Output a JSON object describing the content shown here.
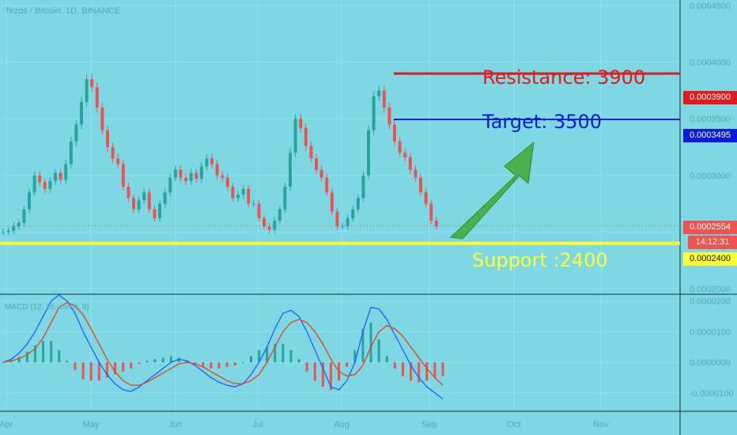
{
  "header": {
    "title": "Tezos / Bitcoin, 1D, BINANCE",
    "macd_label": "MACD (12, 26, close, 9)"
  },
  "annotations": {
    "resistance": "Resistance: 3900",
    "target": "Target: 3500",
    "support": "Support :2400"
  },
  "price_badges": {
    "resistance": "0.0003900",
    "target": "0.0003495",
    "last": "0.0002554",
    "countdown": "14:12:31",
    "support": "0.0002400"
  },
  "colors": {
    "background": "#7dd8e4",
    "up_candle": "#26a69a",
    "down_candle": "#ef5350",
    "resistance": "#e31a1c",
    "target": "#0a1ad6",
    "support": "#ffff33",
    "arrow": "#4cae4c",
    "macd_line": "#2962ff",
    "signal_line": "#e64a19"
  },
  "chart_data": {
    "type": "candlestick",
    "main": {
      "y_ticks": [
        "0.0004500",
        "0.0004000",
        "0.0003500",
        "0.0003000",
        "0.0002500",
        "0.0002000"
      ],
      "ylim": [
        0.000195,
        0.000455
      ],
      "x_ticks": [
        "Apr",
        "May",
        "Jun",
        "Jul",
        "Aug",
        "Sep",
        "Oct",
        "Nov"
      ],
      "horizontal_levels": [
        {
          "name": "Resistance",
          "value": 0.00039
        },
        {
          "name": "Target",
          "value": 0.0003495
        },
        {
          "name": "Support",
          "value": 0.00024
        }
      ],
      "last_price": 0.0002554,
      "series": [
        {
          "name": "Close",
          "values": [
            0.00025,
            0.000251,
            0.000255,
            0.000258,
            0.00027,
            0.000285,
            0.0003,
            0.000294,
            0.000288,
            0.000295,
            0.000302,
            0.000296,
            0.00031,
            0.00033,
            0.000345,
            0.000365,
            0.000385,
            0.000378,
            0.00036,
            0.00034,
            0.000325,
            0.000315,
            0.00031,
            0.00029,
            0.00028,
            0.00027,
            0.000278,
            0.000285,
            0.00027,
            0.000262,
            0.000275,
            0.000285,
            0.000298,
            0.000305,
            0.000298,
            0.000295,
            0.000302,
            0.000297,
            0.000308,
            0.000315,
            0.00031,
            0.0003,
            0.000298,
            0.00029,
            0.00028,
            0.000283,
            0.000288,
            0.000275,
            0.000275,
            0.000262,
            0.000255,
            0.000252,
            0.00026,
            0.00027,
            0.00029,
            0.00032,
            0.00035,
            0.000342,
            0.000326,
            0.000315,
            0.000305,
            0.000298,
            0.000285,
            0.000268,
            0.000255,
            0.000255,
            0.000262,
            0.00027,
            0.00028,
            0.0003,
            0.00034,
            0.00037,
            0.000375,
            0.00036,
            0.000345,
            0.00033,
            0.00032,
            0.000316,
            0.000305,
            0.000298,
            0.000285,
            0.000275,
            0.00026,
            0.000255
          ]
        }
      ]
    },
    "macd": {
      "y_ticks": [
        "0.0000200",
        "0.0000100",
        "0.0000000",
        "-0.0000100"
      ],
      "ylim": [
        -1.6e-05,
        2.2e-05
      ],
      "series": [
        {
          "name": "MACD",
          "values": [
            0.0,
            1e-06,
            3e-06,
            6e-06,
            1e-05,
            1.5e-05,
            2e-05,
            2.2e-05,
            2e-05,
            1.6e-05,
            1e-05,
            5e-06,
            0.0,
            -4e-06,
            -7e-06,
            -9e-06,
            -9.5e-06,
            -8e-06,
            -6e-06,
            -4e-06,
            -2e-06,
            0.0,
            1e-06,
            5e-07,
            -1e-06,
            -3e-06,
            -5e-06,
            -6.5e-06,
            -7.5e-06,
            -8e-06,
            -7e-06,
            -4e-06,
            0.0,
            5e-06,
            1.1e-05,
            1.6e-05,
            1.7e-05,
            1.5e-05,
            1e-05,
            4e-06,
            -2e-06,
            -8e-06,
            -9e-06,
            -6e-06,
            0.0,
            1e-05,
            1.8e-05,
            1.75e-05,
            1.4e-05,
            9e-06,
            4e-06,
            -1e-06,
            -5e-06,
            -8e-06,
            -1e-05,
            -1.2e-05
          ]
        },
        {
          "name": "Signal",
          "values": [
            0.0,
            5e-07,
            1.2e-06,
            2.5e-06,
            4.5e-06,
            8e-06,
            1.3e-05,
            1.8e-05,
            1.95e-05,
            1.85e-05,
            1.55e-05,
            1.1e-05,
            6e-06,
            1e-06,
            -3e-06,
            -6e-06,
            -7.5e-06,
            -7.5e-06,
            -6.5e-06,
            -5e-06,
            -3.5e-06,
            -2e-06,
            -5e-07,
            0.0,
            -5e-07,
            -1.5e-06,
            -3e-06,
            -4.5e-06,
            -6e-06,
            -7e-06,
            -7e-06,
            -6e-06,
            -4e-06,
            0.0,
            5e-06,
            1e-05,
            1.3e-05,
            1.4e-05,
            1.3e-05,
            1e-05,
            6e-06,
            1e-06,
            -3e-06,
            -4.5e-06,
            -4e-06,
            -1e-06,
            5e-06,
            1e-05,
            1.2e-05,
            1.1e-05,
            8.5e-06,
            5e-06,
            1.5e-06,
            -2e-06,
            -5e-06,
            -7.5e-06
          ]
        }
      ]
    }
  }
}
